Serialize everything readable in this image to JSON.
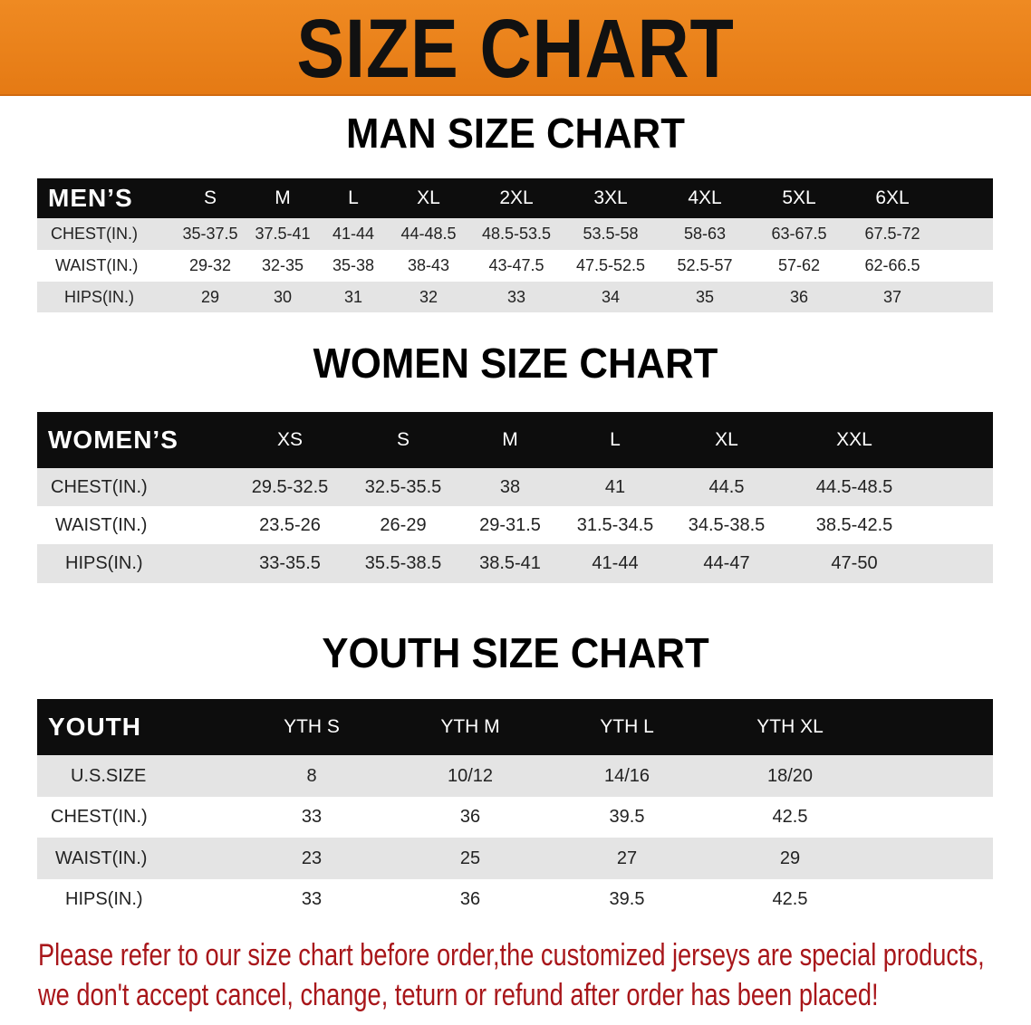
{
  "banner": {
    "title": "SIZE CHART",
    "color": "#e8801c"
  },
  "men": {
    "title": "MAN SIZE CHART",
    "header": "MEN’S",
    "sizes": [
      "S",
      "M",
      "L",
      "XL",
      "2XL",
      "3XL",
      "4XL",
      "5XL",
      "6XL"
    ],
    "rows": [
      {
        "label": "CHEST(IN.)",
        "values": [
          "35-37.5",
          "37.5-41",
          "41-44",
          "44-48.5",
          "48.5-53.5",
          "53.5-58",
          "58-63",
          "63-67.5",
          "67.5-72"
        ]
      },
      {
        "label": "WAIST(IN.)",
        "values": [
          "29-32",
          "32-35",
          "35-38",
          "38-43",
          "43-47.5",
          "47.5-52.5",
          "52.5-57",
          "57-62",
          "62-66.5"
        ]
      },
      {
        "label": "HIPS(IN.)",
        "values": [
          "29",
          "30",
          "31",
          "32",
          "33",
          "34",
          "35",
          "36",
          "37"
        ]
      }
    ]
  },
  "women": {
    "title": "WOMEN SIZE CHART",
    "header": "WOMEN’S",
    "sizes": [
      "XS",
      "S",
      "M",
      "L",
      "XL",
      "XXL"
    ],
    "rows": [
      {
        "label": "CHEST(IN.)",
        "values": [
          "29.5-32.5",
          "32.5-35.5",
          "38",
          "41",
          "44.5",
          "44.5-48.5"
        ]
      },
      {
        "label": "WAIST(IN.)",
        "values": [
          "23.5-26",
          "26-29",
          "29-31.5",
          "31.5-34.5",
          "34.5-38.5",
          "38.5-42.5"
        ]
      },
      {
        "label": "HIPS(IN.)",
        "values": [
          "33-35.5",
          "35.5-38.5",
          "38.5-41",
          "41-44",
          "44-47",
          "47-50"
        ]
      }
    ]
  },
  "youth": {
    "title": "YOUTH SIZE CHART",
    "header": "YOUTH",
    "sizes": [
      "YTH S",
      "YTH M",
      "YTH L",
      "YTH XL"
    ],
    "rows": [
      {
        "label": "U.S.SIZE",
        "values": [
          "8",
          "10/12",
          "14/16",
          "18/20"
        ]
      },
      {
        "label": "CHEST(IN.)",
        "values": [
          "33",
          "36",
          "39.5",
          "42.5"
        ]
      },
      {
        "label": "WAIST(IN.)",
        "values": [
          "23",
          "25",
          "27",
          "29"
        ]
      },
      {
        "label": "HIPS(IN.)",
        "values": [
          "33",
          "36",
          "39.5",
          "42.5"
        ]
      }
    ]
  },
  "notice": {
    "line1": "Please refer to our size chart before order,the customized jerseys are special products,",
    "line2": "we don't accept cancel, change, teturn or refund after order has been placed!",
    "color": "#a8161a"
  }
}
